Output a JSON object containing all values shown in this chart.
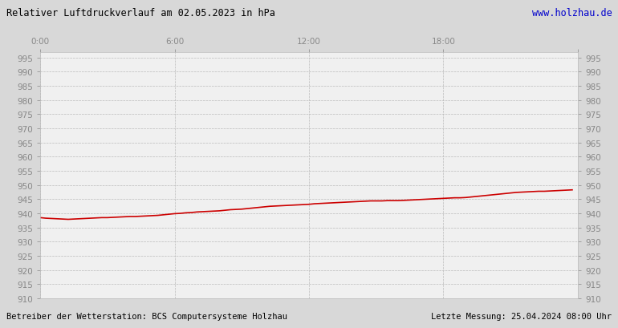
{
  "title": "Relativer Luftdruckverlauf am 02.05.2023 in hPa",
  "website": "www.holzhau.de",
  "footer_left": "Betreiber der Wetterstation: BCS Computersysteme Holzhau",
  "footer_right": "Letzte Messung: 25.04.2024 08:00 Uhr",
  "background_color": "#d8d8d8",
  "plot_bg_color": "#f0f0f0",
  "line_color": "#cc0000",
  "title_color": "#000000",
  "website_color": "#0000cc",
  "grid_color": "#bbbbbb",
  "axis_label_color": "#888888",
  "ylim": [
    910,
    997
  ],
  "yticks": [
    910,
    915,
    920,
    925,
    930,
    935,
    940,
    945,
    950,
    955,
    960,
    965,
    970,
    975,
    980,
    985,
    990,
    995
  ],
  "xticks_positions": [
    0,
    6,
    12,
    18,
    24
  ],
  "xticks_labels": [
    "0:00",
    "6:00",
    "12:00",
    "18:00",
    ""
  ],
  "x_hours": [
    0.0,
    0.25,
    0.5,
    0.75,
    1.0,
    1.25,
    1.5,
    1.75,
    2.0,
    2.25,
    2.5,
    2.75,
    3.0,
    3.25,
    3.5,
    3.75,
    4.0,
    4.25,
    4.5,
    4.75,
    5.0,
    5.25,
    5.5,
    5.75,
    6.0,
    6.25,
    6.5,
    6.75,
    7.0,
    7.25,
    7.5,
    7.75,
    8.0,
    8.25,
    8.5,
    8.75,
    9.0,
    9.25,
    9.5,
    9.75,
    10.0,
    10.25,
    10.5,
    10.75,
    11.0,
    11.25,
    11.5,
    11.75,
    12.0,
    12.25,
    12.5,
    12.75,
    13.0,
    13.25,
    13.5,
    13.75,
    14.0,
    14.25,
    14.5,
    14.75,
    15.0,
    15.25,
    15.5,
    15.75,
    16.0,
    16.25,
    16.5,
    16.75,
    17.0,
    17.25,
    17.5,
    17.75,
    18.0,
    18.25,
    18.5,
    18.75,
    19.0,
    19.25,
    19.5,
    19.75,
    20.0,
    20.25,
    20.5,
    20.75,
    21.0,
    21.25,
    21.5,
    21.75,
    22.0,
    22.25,
    22.5,
    22.75,
    23.0,
    23.25,
    23.5,
    23.75
  ],
  "pressure": [
    938.5,
    938.3,
    938.2,
    938.1,
    938.0,
    937.9,
    938.0,
    938.1,
    938.2,
    938.3,
    938.4,
    938.5,
    938.5,
    938.6,
    938.7,
    938.8,
    938.9,
    938.9,
    939.0,
    939.1,
    939.2,
    939.3,
    939.5,
    939.7,
    939.9,
    940.0,
    940.2,
    940.3,
    940.5,
    940.6,
    940.7,
    940.8,
    940.9,
    941.1,
    941.3,
    941.4,
    941.5,
    941.7,
    941.9,
    942.1,
    942.3,
    942.5,
    942.6,
    942.7,
    942.8,
    942.9,
    943.0,
    943.1,
    943.2,
    943.4,
    943.5,
    943.6,
    943.7,
    943.8,
    943.9,
    944.0,
    944.1,
    944.2,
    944.3,
    944.4,
    944.4,
    944.4,
    944.5,
    944.5,
    944.5,
    944.6,
    944.7,
    944.8,
    944.9,
    945.0,
    945.1,
    945.2,
    945.3,
    945.4,
    945.5,
    945.5,
    945.6,
    945.8,
    946.0,
    946.2,
    946.4,
    946.6,
    946.8,
    947.0,
    947.2,
    947.4,
    947.5,
    947.6,
    947.7,
    947.8,
    947.8,
    947.9,
    948.0,
    948.1,
    948.2,
    948.3
  ]
}
